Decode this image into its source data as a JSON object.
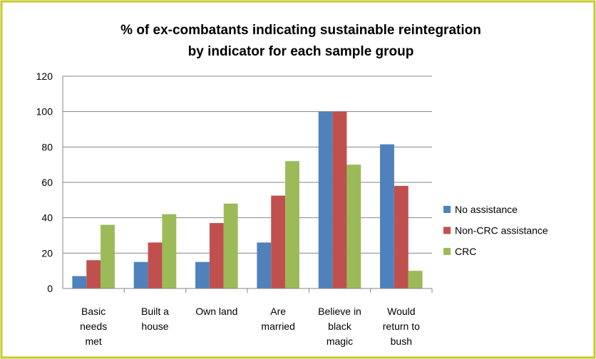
{
  "chart_data": {
    "type": "bar",
    "title": "% of ex-combatants indicating sustainable reintegration\nby indicator for each sample group",
    "categories": [
      "Basic\nneeds\nmet",
      "Built a\nhouse",
      "Own land",
      "Are\nmarried",
      "Believe in\nblack\nmagic",
      "Would\nreturn to\nbush"
    ],
    "series": [
      {
        "name": "No assistance",
        "color": "#4f81bd",
        "values": [
          7,
          15,
          15,
          26,
          100,
          81.5
        ]
      },
      {
        "name": "Non-CRC assistance",
        "color": "#c0504d",
        "values": [
          16,
          26,
          37,
          52.5,
          100,
          58
        ]
      },
      {
        "name": "CRC",
        "color": "#9bbb59",
        "values": [
          36,
          42,
          48,
          72,
          70,
          10
        ]
      }
    ],
    "ylim": [
      0,
      120
    ],
    "yticks": [
      0,
      20,
      40,
      60,
      80,
      100,
      120
    ],
    "grid": true,
    "legend": "right"
  }
}
